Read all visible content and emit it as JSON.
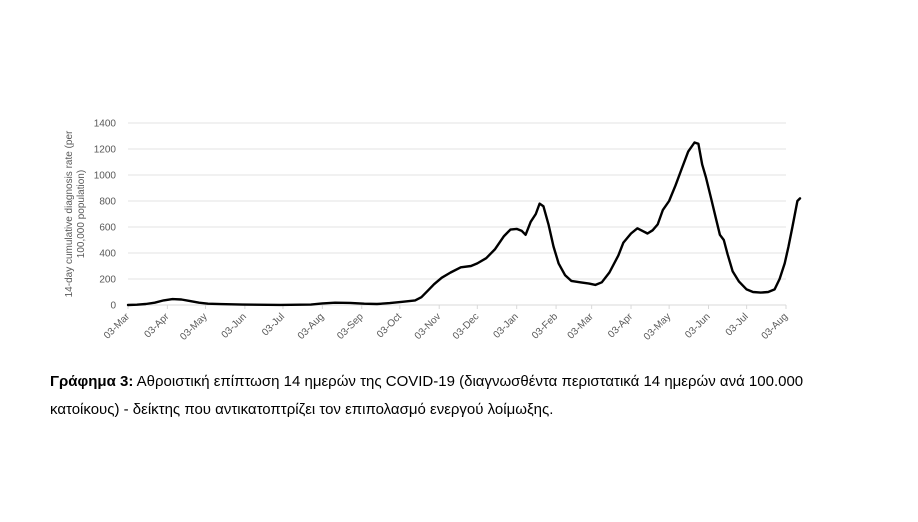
{
  "chart_data": {
    "type": "line",
    "ylabel": "14-day cumulative diagnosis rate (per 100,000 population)",
    "ylim": [
      0,
      1400
    ],
    "yticks": [
      0,
      200,
      400,
      600,
      800,
      1000,
      1200,
      1400
    ],
    "xlim": [
      "2020-03-03",
      "2021-08-03"
    ],
    "xticks": [
      "2020-03-03",
      "2020-04-03",
      "2020-05-03",
      "2020-06-03",
      "2020-07-03",
      "2020-08-03",
      "2020-09-03",
      "2020-10-03",
      "2020-11-03",
      "2020-12-03",
      "2021-01-03",
      "2021-02-03",
      "2021-03-03",
      "2021-04-03",
      "2021-05-03",
      "2021-06-03",
      "2021-07-03",
      "2021-08-03"
    ],
    "xtick_labels": [
      "03-Mar",
      "03-Apr",
      "03-May",
      "03-Jun",
      "03-Jul",
      "03-Aug",
      "03-Sep",
      "03-Oct",
      "03-Nov",
      "03-Dec",
      "03-Jan",
      "03-Feb",
      "03-Mar",
      "03-Apr",
      "03-May",
      "03-Jun",
      "03-Jul",
      "03-Aug"
    ],
    "grid": true,
    "series": [
      {
        "color": "#000000",
        "points": [
          [
            "2020-03-03",
            0
          ],
          [
            "2020-03-10",
            2
          ],
          [
            "2020-03-17",
            8
          ],
          [
            "2020-03-24",
            18
          ],
          [
            "2020-03-31",
            35
          ],
          [
            "2020-04-07",
            45
          ],
          [
            "2020-04-14",
            42
          ],
          [
            "2020-04-21",
            30
          ],
          [
            "2020-04-28",
            18
          ],
          [
            "2020-05-05",
            10
          ],
          [
            "2020-05-15",
            7
          ],
          [
            "2020-06-01",
            3
          ],
          [
            "2020-07-01",
            1
          ],
          [
            "2020-07-25",
            3
          ],
          [
            "2020-08-03",
            12
          ],
          [
            "2020-08-13",
            18
          ],
          [
            "2020-08-25",
            16
          ],
          [
            "2020-09-05",
            10
          ],
          [
            "2020-09-15",
            8
          ],
          [
            "2020-09-25",
            15
          ],
          [
            "2020-10-05",
            25
          ],
          [
            "2020-10-15",
            35
          ],
          [
            "2020-10-20",
            60
          ],
          [
            "2020-10-25",
            110
          ],
          [
            "2020-10-30",
            160
          ],
          [
            "2020-11-05",
            210
          ],
          [
            "2020-11-12",
            250
          ],
          [
            "2020-11-20",
            290
          ],
          [
            "2020-11-28",
            300
          ],
          [
            "2020-12-03",
            320
          ],
          [
            "2020-12-10",
            360
          ],
          [
            "2020-12-17",
            430
          ],
          [
            "2020-12-24",
            530
          ],
          [
            "2020-12-29",
            580
          ],
          [
            "2021-01-03",
            585
          ],
          [
            "2021-01-07",
            570
          ],
          [
            "2021-01-10",
            540
          ],
          [
            "2021-01-14",
            640
          ],
          [
            "2021-01-18",
            700
          ],
          [
            "2021-01-21",
            780
          ],
          [
            "2021-01-24",
            760
          ],
          [
            "2021-01-28",
            620
          ],
          [
            "2021-02-01",
            450
          ],
          [
            "2021-02-05",
            320
          ],
          [
            "2021-02-10",
            230
          ],
          [
            "2021-02-15",
            185
          ],
          [
            "2021-02-22",
            175
          ],
          [
            "2021-03-01",
            165
          ],
          [
            "2021-03-06",
            155
          ],
          [
            "2021-03-11",
            175
          ],
          [
            "2021-03-17",
            250
          ],
          [
            "2021-03-24",
            380
          ],
          [
            "2021-03-28",
            480
          ],
          [
            "2021-04-03",
            550
          ],
          [
            "2021-04-08",
            590
          ],
          [
            "2021-04-12",
            570
          ],
          [
            "2021-04-16",
            550
          ],
          [
            "2021-04-20",
            575
          ],
          [
            "2021-04-24",
            620
          ],
          [
            "2021-04-28",
            730
          ],
          [
            "2021-05-03",
            800
          ],
          [
            "2021-05-08",
            920
          ],
          [
            "2021-05-13",
            1050
          ],
          [
            "2021-05-18",
            1180
          ],
          [
            "2021-05-23",
            1250
          ],
          [
            "2021-05-26",
            1240
          ],
          [
            "2021-05-29",
            1080
          ],
          [
            "2021-06-01",
            980
          ],
          [
            "2021-06-05",
            820
          ],
          [
            "2021-06-09",
            660
          ],
          [
            "2021-06-12",
            540
          ],
          [
            "2021-06-15",
            500
          ],
          [
            "2021-06-18",
            390
          ],
          [
            "2021-06-22",
            260
          ],
          [
            "2021-06-27",
            180
          ],
          [
            "2021-07-03",
            120
          ],
          [
            "2021-07-08",
            100
          ],
          [
            "2021-07-14",
            95
          ],
          [
            "2021-07-20",
            100
          ],
          [
            "2021-07-25",
            120
          ],
          [
            "2021-07-29",
            200
          ],
          [
            "2021-08-02",
            320
          ],
          [
            "2021-08-05",
            450
          ],
          [
            "2021-08-08",
            600
          ],
          [
            "2021-08-10",
            700
          ],
          [
            "2021-08-12",
            800
          ],
          [
            "2021-08-14",
            820
          ]
        ]
      }
    ]
  },
  "caption": {
    "bold": "Γράφημα 3:",
    "text": " Αθροιστική επίπτωση 14 ημερών της COVID-19 (διαγνωσθέντα περιστατικά 14 ημερών ανά 100.000 κατοίκους) - δείκτης που αντικατοπτρίζει τον επιπολασμό ενεργού λοίμωξης."
  }
}
